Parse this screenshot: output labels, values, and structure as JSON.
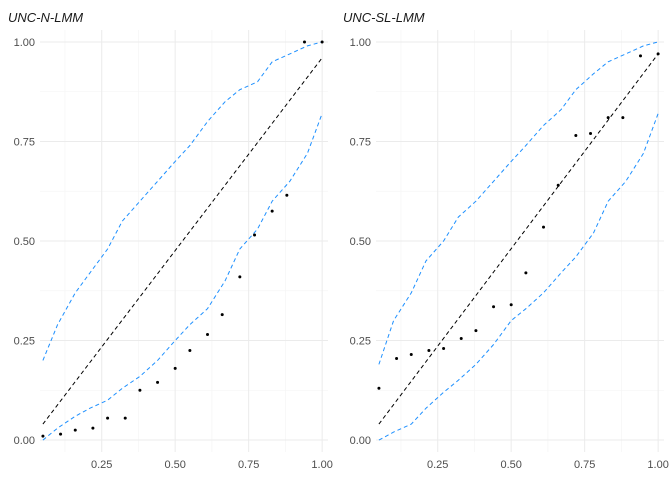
{
  "chart_data": [
    {
      "type": "scatter",
      "title": "UNC-N-LMM",
      "xlim": [
        0.04,
        1.02
      ],
      "ylim": [
        -0.03,
        1.03
      ],
      "x_ticks": [
        0.25,
        0.5,
        0.75,
        1.0
      ],
      "x_tick_labels": [
        "0.25",
        "0.50",
        "0.75",
        "1.00"
      ],
      "y_ticks": [
        0,
        0.25,
        0.5,
        0.75,
        1.0
      ],
      "y_tick_labels": [
        "0.00",
        "0.25",
        "0.50",
        "0.75",
        "1.00"
      ],
      "grid": true,
      "reference_line": {
        "x": [
          0.05,
          1.0
        ],
        "y": [
          0.04,
          0.96
        ]
      },
      "upper_band": {
        "x": [
          0.05,
          0.1,
          0.16,
          0.21,
          0.27,
          0.32,
          0.38,
          0.44,
          0.5,
          0.55,
          0.61,
          0.67,
          0.72,
          0.78,
          0.83,
          0.89,
          0.95,
          1.0
        ],
        "y": [
          0.2,
          0.29,
          0.37,
          0.42,
          0.48,
          0.55,
          0.6,
          0.65,
          0.7,
          0.74,
          0.8,
          0.85,
          0.88,
          0.9,
          0.95,
          0.97,
          0.99,
          1.0
        ]
      },
      "lower_band": {
        "x": [
          0.05,
          0.1,
          0.16,
          0.21,
          0.27,
          0.32,
          0.38,
          0.44,
          0.5,
          0.55,
          0.61,
          0.67,
          0.72,
          0.78,
          0.83,
          0.89,
          0.95,
          1.0
        ],
        "y": [
          0.0,
          0.03,
          0.06,
          0.08,
          0.1,
          0.13,
          0.16,
          0.2,
          0.25,
          0.29,
          0.33,
          0.4,
          0.48,
          0.53,
          0.6,
          0.65,
          0.72,
          0.82
        ]
      },
      "points": {
        "x": [
          0.05,
          0.11,
          0.16,
          0.22,
          0.27,
          0.33,
          0.38,
          0.44,
          0.5,
          0.55,
          0.61,
          0.66,
          0.72,
          0.77,
          0.83,
          0.88,
          0.94,
          1.0
        ],
        "y": [
          0.01,
          0.015,
          0.025,
          0.03,
          0.055,
          0.055,
          0.125,
          0.145,
          0.18,
          0.225,
          0.265,
          0.315,
          0.41,
          0.515,
          0.575,
          0.615,
          1.0,
          1.0
        ]
      },
      "colors": {
        "band": "#1e90ff",
        "reference": "#000000",
        "points": "#000000"
      }
    },
    {
      "type": "scatter",
      "title": "UNC-SL-LMM",
      "xlim": [
        0.04,
        1.02
      ],
      "ylim": [
        -0.03,
        1.03
      ],
      "x_ticks": [
        0.25,
        0.5,
        0.75,
        1.0
      ],
      "x_tick_labels": [
        "0.25",
        "0.50",
        "0.75",
        "1.00"
      ],
      "y_ticks": [
        0,
        0.25,
        0.5,
        0.75,
        1.0
      ],
      "y_tick_labels": [
        "0.00",
        "0.25",
        "0.50",
        "0.75",
        "1.00"
      ],
      "grid": true,
      "reference_line": {
        "x": [
          0.05,
          1.0
        ],
        "y": [
          0.04,
          0.97
        ]
      },
      "upper_band": {
        "x": [
          0.05,
          0.1,
          0.16,
          0.21,
          0.27,
          0.32,
          0.38,
          0.44,
          0.5,
          0.55,
          0.61,
          0.67,
          0.72,
          0.78,
          0.83,
          0.89,
          0.95,
          1.0
        ],
        "y": [
          0.19,
          0.3,
          0.37,
          0.45,
          0.5,
          0.56,
          0.6,
          0.65,
          0.7,
          0.74,
          0.79,
          0.83,
          0.88,
          0.92,
          0.95,
          0.97,
          0.99,
          1.0
        ]
      },
      "lower_band": {
        "x": [
          0.05,
          0.1,
          0.16,
          0.21,
          0.27,
          0.32,
          0.38,
          0.44,
          0.5,
          0.55,
          0.61,
          0.67,
          0.72,
          0.78,
          0.83,
          0.89,
          0.95,
          1.0
        ],
        "y": [
          0.0,
          0.02,
          0.04,
          0.08,
          0.12,
          0.15,
          0.19,
          0.24,
          0.3,
          0.33,
          0.37,
          0.42,
          0.46,
          0.52,
          0.6,
          0.65,
          0.72,
          0.82
        ]
      },
      "points": {
        "x": [
          0.05,
          0.11,
          0.16,
          0.22,
          0.27,
          0.33,
          0.38,
          0.44,
          0.5,
          0.55,
          0.61,
          0.66,
          0.72,
          0.77,
          0.83,
          0.88,
          0.94,
          1.0
        ],
        "y": [
          0.13,
          0.205,
          0.215,
          0.225,
          0.23,
          0.255,
          0.275,
          0.335,
          0.34,
          0.42,
          0.535,
          0.64,
          0.765,
          0.77,
          0.81,
          0.81,
          0.965,
          0.97
        ]
      },
      "colors": {
        "band": "#1e90ff",
        "reference": "#000000",
        "points": "#000000"
      }
    }
  ]
}
